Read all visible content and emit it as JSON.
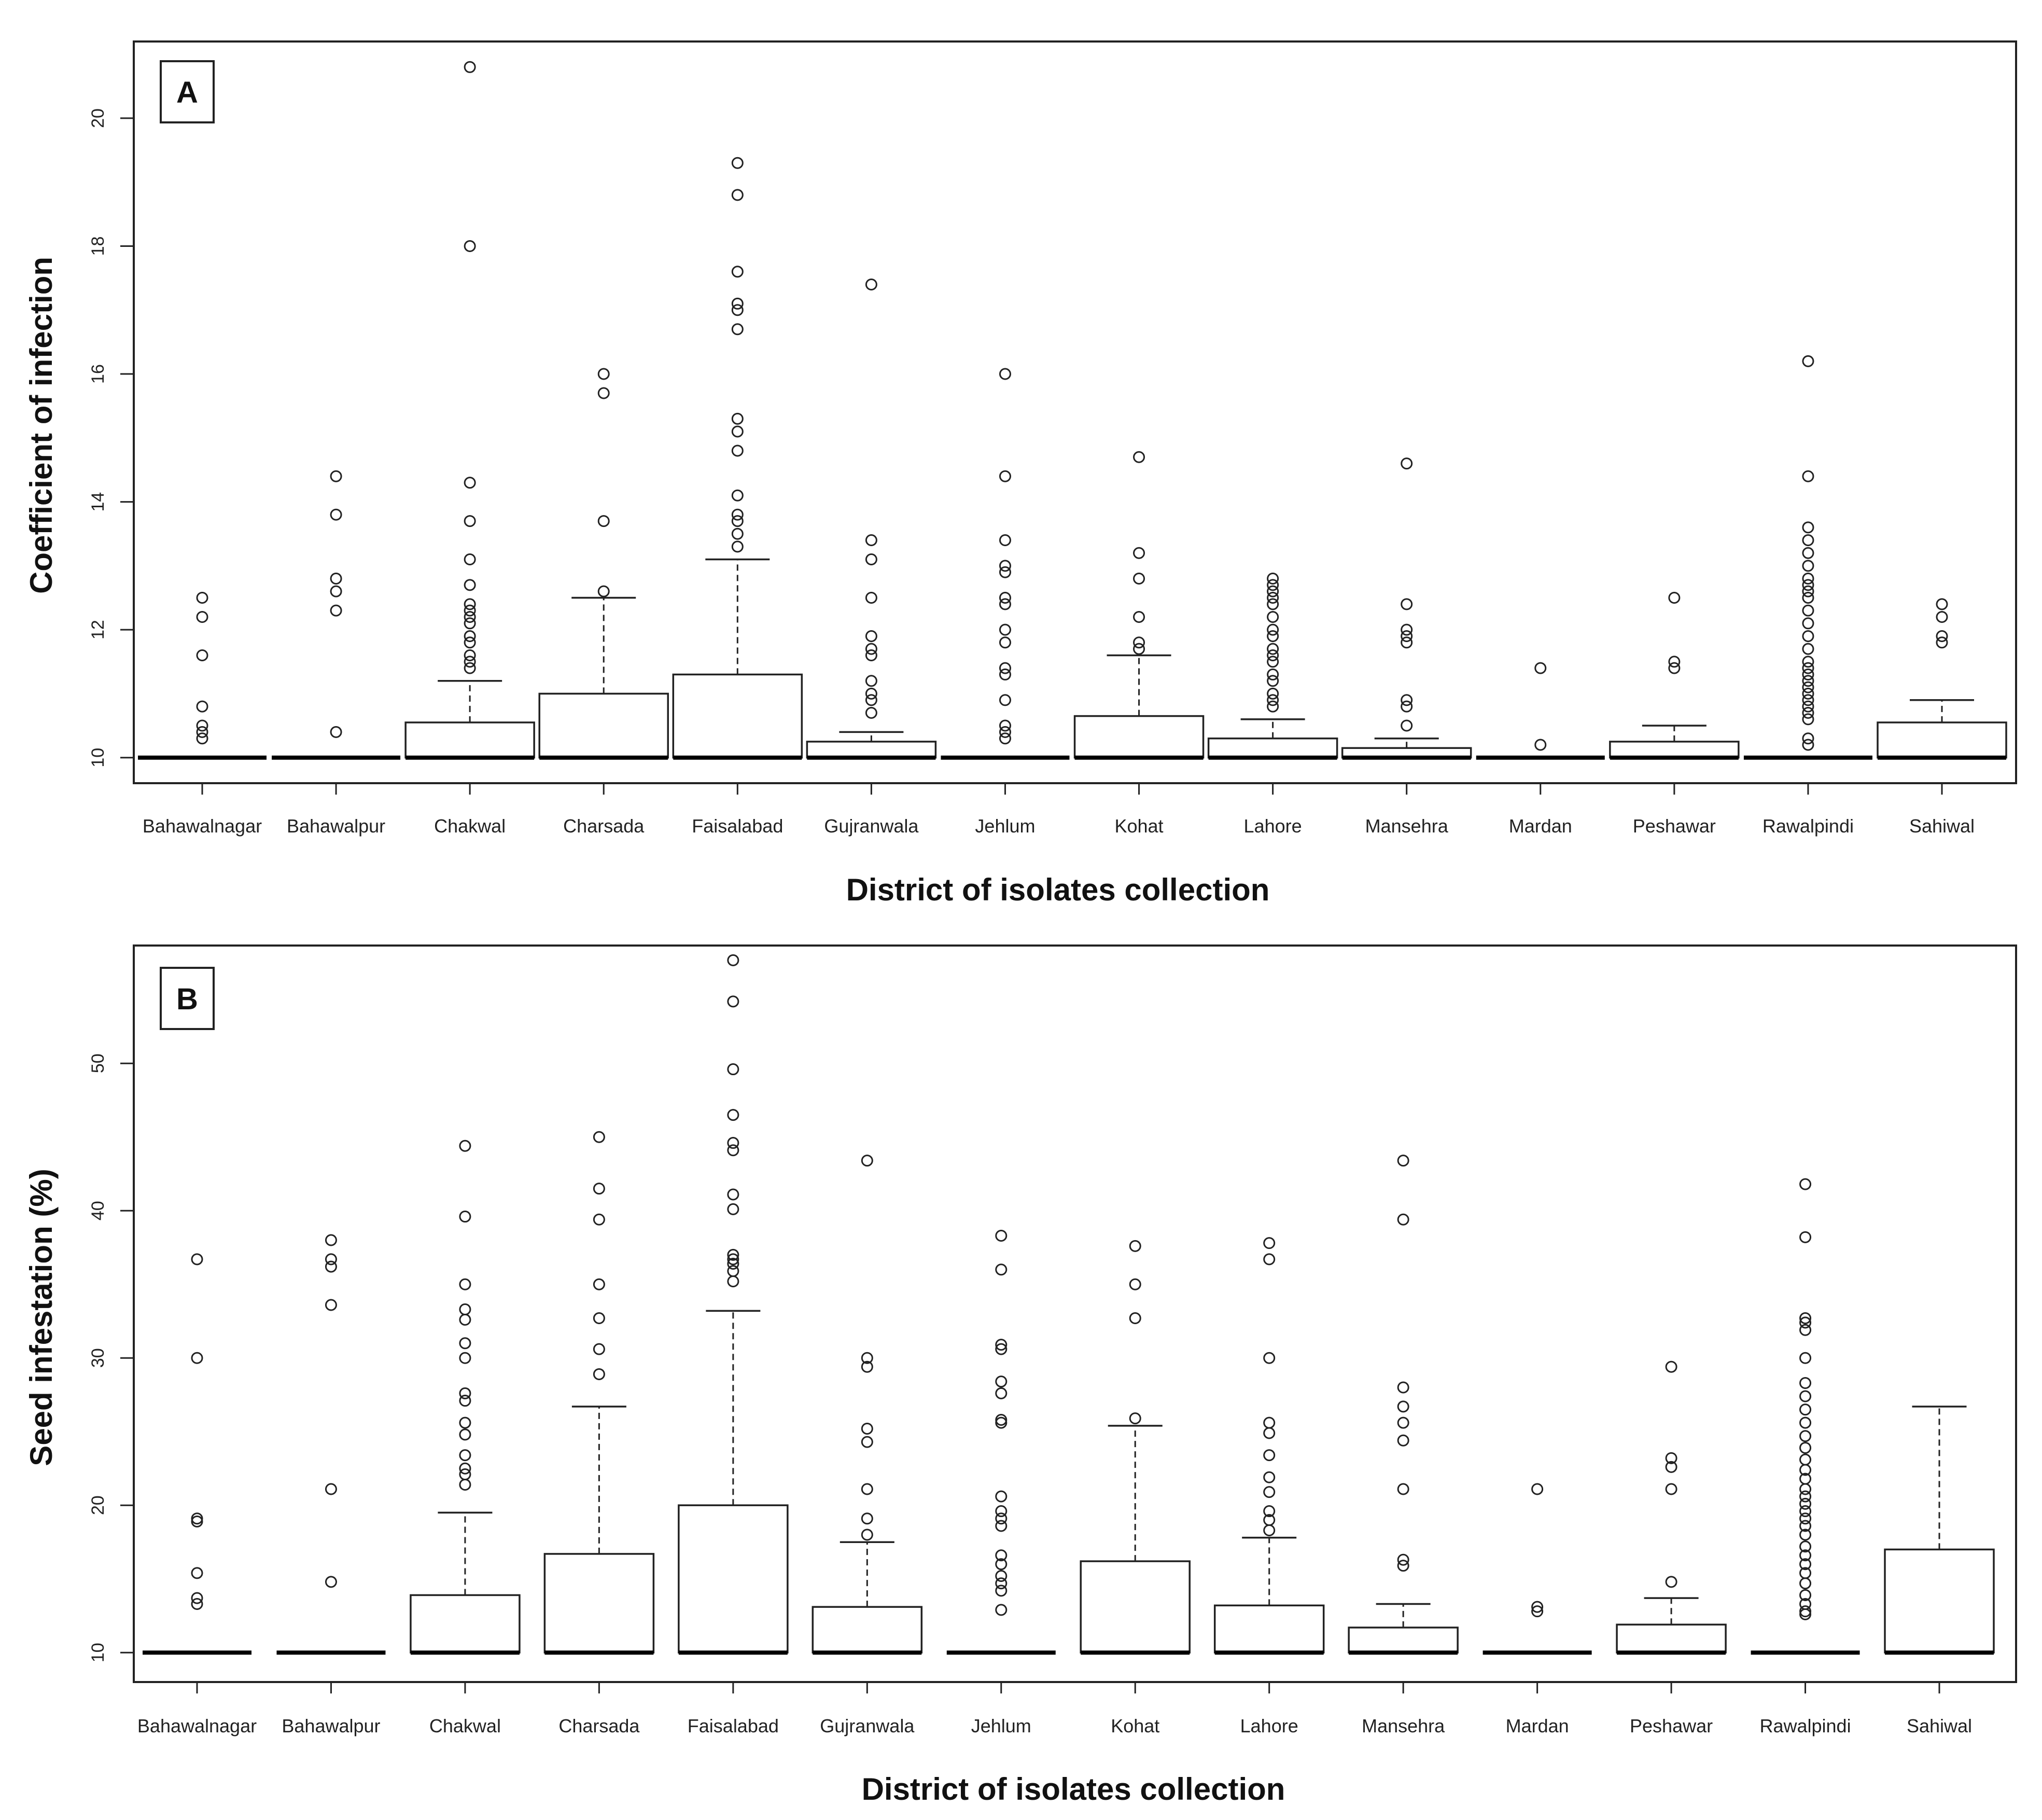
{
  "chart_data": [
    {
      "type": "box",
      "panel": "A",
      "title": "",
      "xlabel": "District of isolates collection",
      "ylabel": "Coefficient of infection",
      "ylim": [
        9.6,
        21.2
      ],
      "yticks": [
        10,
        12,
        14,
        16,
        18,
        20
      ],
      "categories": [
        "Bahawalnagar",
        "Bahawalpur",
        "Chakwal",
        "Charsada",
        "Faisalabad",
        "Gujranwala",
        "Jehlum",
        "Kohat",
        "Lahore",
        "Mansehra",
        "Mardan",
        "Peshawar",
        "Rawalpindi",
        "Sahiwal"
      ],
      "boxes": [
        {
          "q1": 10,
          "median": 10,
          "q3": 10,
          "whisker_high": 10,
          "outliers": [
            10.3,
            10.4,
            10.5,
            10.8,
            11.6,
            12.2,
            12.5
          ]
        },
        {
          "q1": 10,
          "median": 10,
          "q3": 10,
          "whisker_high": 10,
          "outliers": [
            10.4,
            12.3,
            12.6,
            12.8,
            13.8,
            14.4
          ]
        },
        {
          "q1": 10,
          "median": 10,
          "q3": 10.55,
          "whisker_high": 11.2,
          "outliers": [
            11.4,
            11.5,
            11.6,
            11.8,
            11.9,
            12.1,
            12.2,
            12.3,
            12.4,
            12.7,
            13.1,
            13.7,
            14.3,
            18.0,
            20.8
          ]
        },
        {
          "q1": 10,
          "median": 10,
          "q3": 11.0,
          "whisker_high": 12.5,
          "outliers": [
            12.6,
            13.7,
            15.7,
            16.0
          ]
        },
        {
          "q1": 10,
          "median": 10,
          "q3": 11.3,
          "whisker_high": 13.1,
          "outliers": [
            13.3,
            13.5,
            13.7,
            13.8,
            14.1,
            14.8,
            15.1,
            15.3,
            16.7,
            17.0,
            17.1,
            17.6,
            18.8,
            19.3
          ]
        },
        {
          "q1": 10,
          "median": 10,
          "q3": 10.25,
          "whisker_high": 10.4,
          "outliers": [
            10.7,
            10.9,
            11.0,
            11.2,
            11.6,
            11.7,
            11.9,
            12.5,
            13.1,
            13.4,
            17.4
          ]
        },
        {
          "q1": 10,
          "median": 10,
          "q3": 10,
          "whisker_high": 10,
          "outliers": [
            10.3,
            10.4,
            10.5,
            10.9,
            11.3,
            11.4,
            11.8,
            12.0,
            12.4,
            12.5,
            12.9,
            13.0,
            13.4,
            14.4,
            16.0
          ]
        },
        {
          "q1": 10,
          "median": 10,
          "q3": 10.65,
          "whisker_high": 11.6,
          "outliers": [
            11.7,
            11.8,
            12.2,
            12.8,
            13.2,
            14.7
          ]
        },
        {
          "q1": 10,
          "median": 10,
          "q3": 10.3,
          "whisker_high": 10.6,
          "outliers": [
            10.8,
            10.9,
            11.0,
            11.2,
            11.3,
            11.5,
            11.6,
            11.7,
            11.9,
            12.0,
            12.2,
            12.4,
            12.5,
            12.6,
            12.7,
            12.8
          ]
        },
        {
          "q1": 10,
          "median": 10,
          "q3": 10.15,
          "whisker_high": 10.3,
          "outliers": [
            10.5,
            10.8,
            10.9,
            11.8,
            11.9,
            12.0,
            12.4,
            14.6
          ]
        },
        {
          "q1": 10,
          "median": 10,
          "q3": 10,
          "whisker_high": 10,
          "outliers": [
            10.2,
            11.4
          ]
        },
        {
          "q1": 10,
          "median": 10,
          "q3": 10.25,
          "whisker_high": 10.5,
          "outliers": [
            11.4,
            11.5,
            12.5
          ]
        },
        {
          "q1": 10,
          "median": 10,
          "q3": 10,
          "whisker_high": 10,
          "outliers": [
            10.2,
            10.3,
            10.6,
            10.7,
            10.8,
            10.9,
            11.0,
            11.1,
            11.2,
            11.3,
            11.4,
            11.5,
            11.7,
            11.9,
            12.1,
            12.3,
            12.5,
            12.6,
            12.7,
            12.8,
            13.0,
            13.2,
            13.4,
            13.6,
            14.4,
            16.2
          ]
        },
        {
          "q1": 10,
          "median": 10,
          "q3": 10.55,
          "whisker_high": 10.9,
          "outliers": [
            11.8,
            11.9,
            12.2,
            12.4
          ]
        }
      ]
    },
    {
      "type": "box",
      "panel": "B",
      "title": "",
      "xlabel": "District of isolates collection",
      "ylabel": "Seed infestation (%)",
      "ylim": [
        8.0,
        58.0
      ],
      "yticks": [
        10,
        20,
        30,
        40,
        50
      ],
      "categories": [
        "Bahawalnagar",
        "Bahawalpur",
        "Chakwal",
        "Charsada",
        "Faisalabad",
        "Gujranwala",
        "Jehlum",
        "Kohat",
        "Lahore",
        "Mansehra",
        "Mardan",
        "Peshawar",
        "Rawalpindi",
        "Sahiwal"
      ],
      "boxes": [
        {
          "q1": 10,
          "median": 10,
          "q3": 10,
          "whisker_high": 10,
          "outliers": [
            13.3,
            13.7,
            15.4,
            18.9,
            19.1,
            30.0,
            36.7
          ]
        },
        {
          "q1": 10,
          "median": 10,
          "q3": 10,
          "whisker_high": 10,
          "outliers": [
            14.8,
            21.1,
            33.6,
            36.2,
            36.7,
            38.0
          ]
        },
        {
          "q1": 10,
          "median": 10,
          "q3": 13.9,
          "whisker_high": 19.5,
          "outliers": [
            21.4,
            22.1,
            22.5,
            23.4,
            24.8,
            25.6,
            27.1,
            27.6,
            30.0,
            31.0,
            32.6,
            33.3,
            35.0,
            39.6,
            44.4
          ]
        },
        {
          "q1": 10,
          "median": 10,
          "q3": 16.7,
          "whisker_high": 26.7,
          "outliers": [
            28.9,
            30.6,
            32.7,
            35.0,
            39.4,
            41.5,
            45.0
          ]
        },
        {
          "q1": 10,
          "median": 10,
          "q3": 20.0,
          "whisker_high": 33.2,
          "outliers": [
            35.2,
            35.9,
            36.4,
            36.7,
            37.0,
            40.1,
            41.1,
            44.1,
            44.6,
            46.5,
            49.6,
            54.2,
            57.0
          ]
        },
        {
          "q1": 10,
          "median": 10,
          "q3": 13.1,
          "whisker_high": 17.5,
          "outliers": [
            18.0,
            19.1,
            21.1,
            24.3,
            25.2,
            29.4,
            30.0,
            43.4
          ]
        },
        {
          "q1": 10,
          "median": 10,
          "q3": 10,
          "whisker_high": 10,
          "outliers": [
            12.9,
            14.2,
            14.7,
            15.2,
            16.0,
            16.6,
            18.6,
            19.1,
            19.6,
            20.6,
            25.6,
            25.8,
            27.6,
            28.4,
            30.6,
            30.9,
            36.0,
            38.3
          ]
        },
        {
          "q1": 10,
          "median": 10,
          "q3": 16.2,
          "whisker_high": 25.4,
          "outliers": [
            25.9,
            32.7,
            35.0,
            37.6
          ]
        },
        {
          "q1": 10,
          "median": 10,
          "q3": 13.2,
          "whisker_high": 17.8,
          "outliers": [
            18.3,
            19.0,
            19.6,
            20.9,
            21.9,
            23.4,
            24.9,
            25.6,
            30.0,
            36.7,
            37.8
          ]
        },
        {
          "q1": 10,
          "median": 10,
          "q3": 11.7,
          "whisker_high": 13.3,
          "outliers": [
            15.9,
            16.3,
            21.1,
            24.4,
            25.6,
            26.7,
            28.0,
            39.4,
            43.4
          ]
        },
        {
          "q1": 10,
          "median": 10,
          "q3": 10,
          "whisker_high": 10,
          "outliers": [
            12.8,
            13.1,
            21.1
          ]
        },
        {
          "q1": 10,
          "median": 10,
          "q3": 11.9,
          "whisker_high": 13.7,
          "outliers": [
            14.8,
            21.1,
            22.6,
            23.2,
            29.4
          ]
        },
        {
          "q1": 10,
          "median": 10,
          "q3": 10,
          "whisker_high": 10,
          "outliers": [
            12.6,
            12.8,
            13.3,
            13.9,
            14.7,
            15.4,
            16.0,
            16.6,
            17.2,
            18.0,
            18.6,
            19.1,
            19.6,
            20.1,
            20.6,
            21.1,
            21.8,
            22.4,
            23.1,
            23.9,
            24.7,
            25.6,
            26.5,
            27.4,
            28.3,
            30.0,
            31.9,
            32.4,
            32.7,
            38.2,
            41.8
          ]
        },
        {
          "q1": 10,
          "median": 10,
          "q3": 17.0,
          "whisker_high": 26.7,
          "outliers": []
        }
      ]
    }
  ]
}
